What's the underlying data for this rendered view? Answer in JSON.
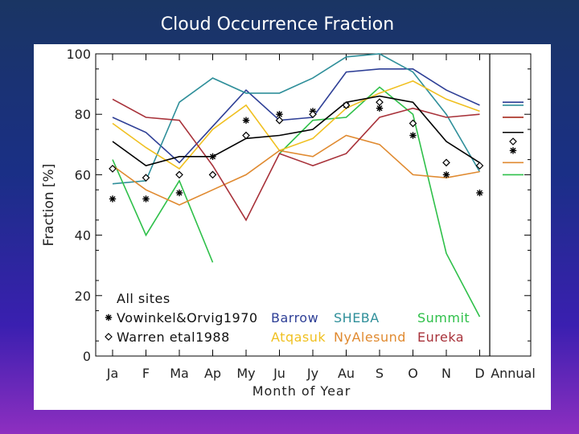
{
  "slide": {
    "title": "Cloud Occurrence Fraction"
  },
  "chart_data": {
    "type": "line",
    "title": "",
    "xlabel": "Month of Year",
    "ylabel": "Fraction [%]",
    "ylim": [
      0,
      100
    ],
    "yticks": [
      "0",
      "20",
      "40",
      "60",
      "80",
      "100"
    ],
    "categories": [
      "Ja",
      "F",
      "Ma",
      "Ap",
      "My",
      "Ju",
      "Jy",
      "Au",
      "S",
      "O",
      "N",
      "D"
    ],
    "annual_label": "Annual",
    "grid": false,
    "legend_position": "bottom-left",
    "legend": {
      "all_sites": "All sites",
      "vowinkel": "Vowinkel&Orvig1970",
      "warren": "Warren etal1988"
    },
    "series": [
      {
        "name": "Barrow",
        "color": "#2e3f96",
        "values": [
          79,
          74,
          64,
          76,
          88,
          78,
          79,
          94,
          95,
          95,
          88,
          83
        ],
        "annual": 84
      },
      {
        "name": "SHEBA",
        "color": "#2f8f9a",
        "values": [
          57,
          58,
          84,
          92,
          87,
          87,
          92,
          99,
          100,
          94,
          80,
          61
        ],
        "annual": 83
      },
      {
        "name": "Summit",
        "color": "#2fc04a",
        "values": [
          65,
          40,
          58,
          31,
          null,
          67,
          78,
          79,
          89,
          80,
          34,
          13
        ],
        "annual": 60
      },
      {
        "name": "Atqasuk",
        "color": "#f0c020",
        "values": [
          77,
          69,
          62,
          75,
          83,
          68,
          72,
          82,
          87,
          91,
          85,
          81
        ],
        "annual": 79
      },
      {
        "name": "NyAlesund",
        "color": "#e08a30",
        "values": [
          63,
          55,
          50,
          55,
          60,
          68,
          66,
          73,
          70,
          60,
          59,
          61
        ],
        "annual": 64
      },
      {
        "name": "Eureka",
        "color": "#a8323a",
        "values": [
          85,
          79,
          78,
          63,
          45,
          67,
          63,
          67,
          79,
          82,
          79,
          80
        ],
        "annual": 79
      },
      {
        "name": "All sites",
        "color": "#000000",
        "values": [
          71,
          63,
          66,
          66,
          72,
          73,
          75,
          84,
          86,
          84,
          71,
          64
        ],
        "annual": 74
      }
    ],
    "vowinkel_orvig_1970": [
      52,
      52,
      54,
      66,
      78,
      80,
      81,
      83,
      82,
      73,
      60,
      54
    ],
    "vowinkel_orvig_1970_annual": 68,
    "warren_etal_1988": [
      62,
      59,
      60,
      60,
      73,
      78,
      80,
      83,
      84,
      77,
      64,
      63
    ],
    "warren_etal_1988_annual": 71
  }
}
